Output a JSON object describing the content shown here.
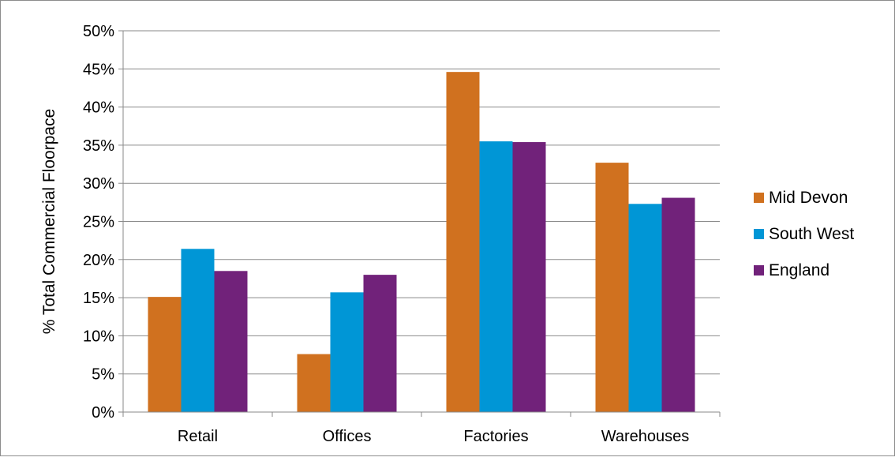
{
  "chart_data": {
    "type": "bar",
    "title": "",
    "xlabel": "",
    "ylabel": "% Total Commercial Floorpace",
    "categories": [
      "Retail",
      "Offices",
      "Factories",
      "Warehouses"
    ],
    "series": [
      {
        "name": "Mid Devon",
        "color": "#D0711F",
        "values": [
          15.1,
          7.6,
          44.6,
          32.7
        ]
      },
      {
        "name": "South West",
        "color": "#0096D6",
        "values": [
          21.4,
          15.7,
          35.5,
          27.3
        ]
      },
      {
        "name": "England",
        "color": "#71227A",
        "values": [
          18.5,
          18.0,
          35.4,
          28.1
        ]
      }
    ],
    "ylim": [
      0,
      50
    ],
    "y_ticks": [
      0,
      5,
      10,
      15,
      20,
      25,
      30,
      35,
      40,
      45,
      50
    ],
    "y_tick_labels": [
      "0%",
      "5%",
      "10%",
      "15%",
      "20%",
      "25%",
      "30%",
      "35%",
      "40%",
      "45%",
      "50%"
    ],
    "grid": true,
    "legend_position": "right"
  }
}
